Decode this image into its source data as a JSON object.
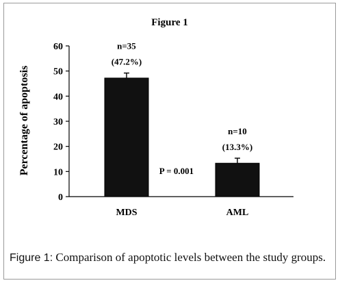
{
  "chart_data": {
    "type": "bar",
    "title": "Figure 1",
    "ylabel": "Percentage of apoptosis",
    "xlabel": "",
    "ylim": [
      0,
      60
    ],
    "yticks": [
      0,
      10,
      20,
      30,
      40,
      50,
      60
    ],
    "categories": [
      "MDS",
      "AML"
    ],
    "values": [
      47.2,
      13.3
    ],
    "error": [
      2.0,
      2.0
    ],
    "bar_color": "#000000",
    "bar_fill": "#111111",
    "annotations": [
      {
        "n": "n=35",
        "pct": "(47.2%)"
      },
      {
        "n": "n=10",
        "pct": "(13.3%)"
      }
    ],
    "pvalue_label": "P = 0.001",
    "grid": false,
    "legend": "none"
  },
  "caption": {
    "label": "Figure 1:",
    "text": " Comparison of apoptotic levels between the study groups."
  }
}
